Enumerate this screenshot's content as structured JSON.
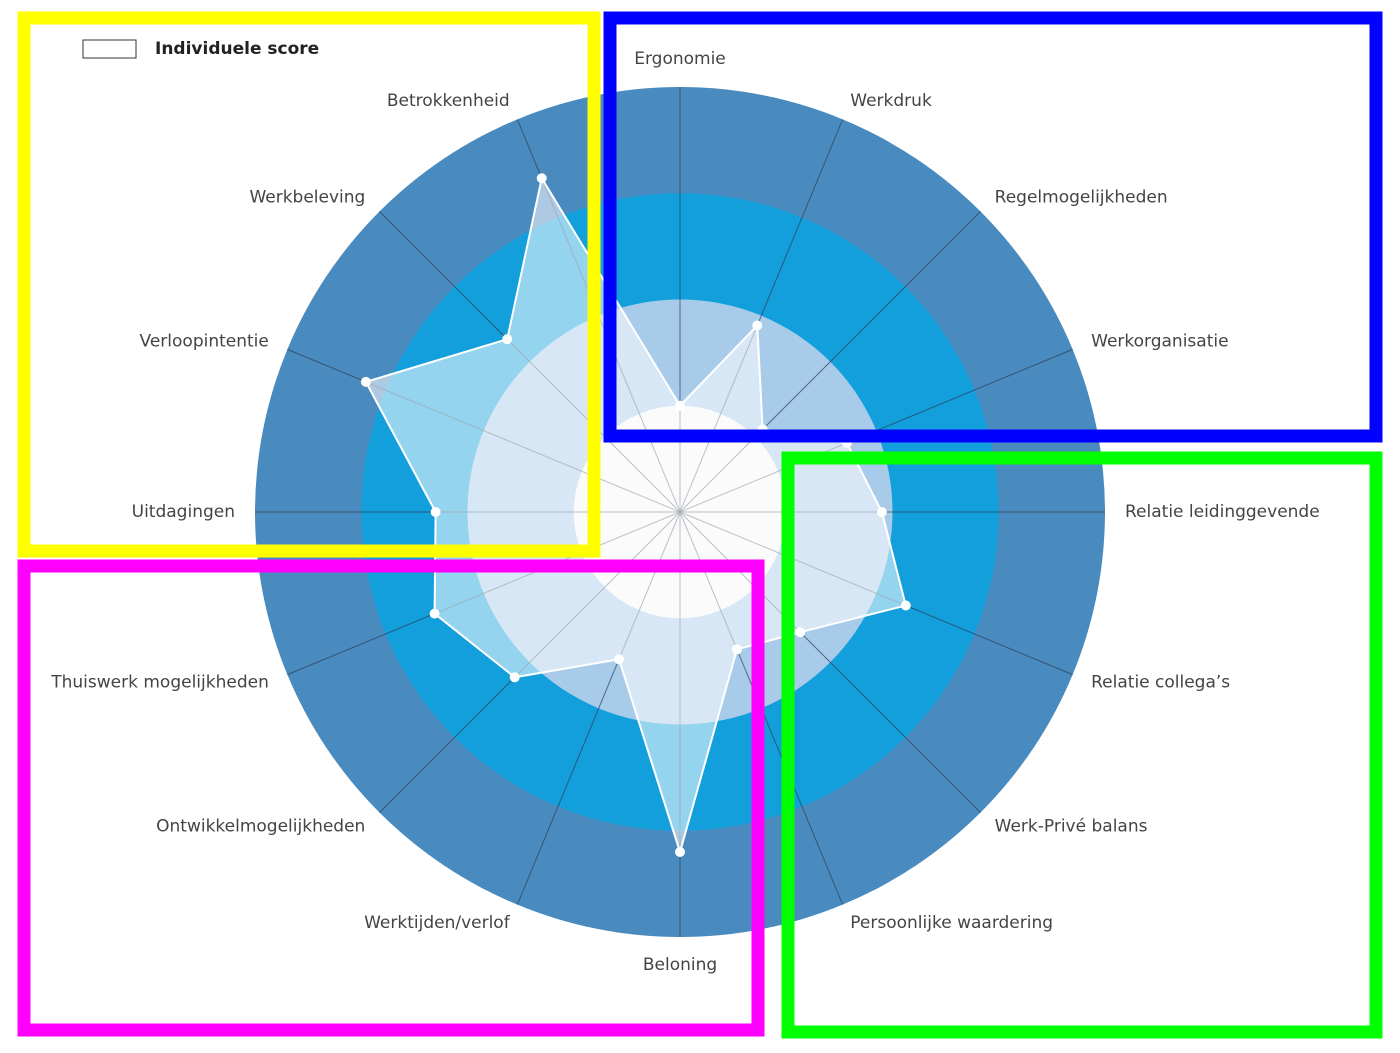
{
  "chart_data": {
    "type": "radar",
    "categories": [
      "Ergonomie",
      "Werkdruk",
      "Regelmogelijkheden",
      "Werkorganisatie",
      "Relatie leidinggevende",
      "Relatie collega’s",
      "Werk-Privé balans",
      "Persoonlijke waardering",
      "Beloning",
      "Werktijden/verlof",
      "Ontwikkelmogelijkheden",
      "Thuiswerk mogelijkheden",
      "Uitdagingen",
      "Verloopintentie",
      "Werkbeleving",
      "Betrokkenheid"
    ],
    "series": [
      {
        "name": "Individuele score",
        "color": "#ffffff",
        "values": [
          1.0,
          1.9,
          1.1,
          1.7,
          1.9,
          2.3,
          1.6,
          1.4,
          3.2,
          1.5,
          2.2,
          2.5,
          2.3,
          3.2,
          2.3,
          3.4
        ]
      }
    ],
    "rlim": [
      0,
      4
    ],
    "rticks": [
      1,
      2,
      3,
      4
    ],
    "ring_colors": [
      "#f5f6f7",
      "#a9cbea",
      "#139fdb",
      "#4a8bbf"
    ],
    "legend": "top-left"
  }
}
